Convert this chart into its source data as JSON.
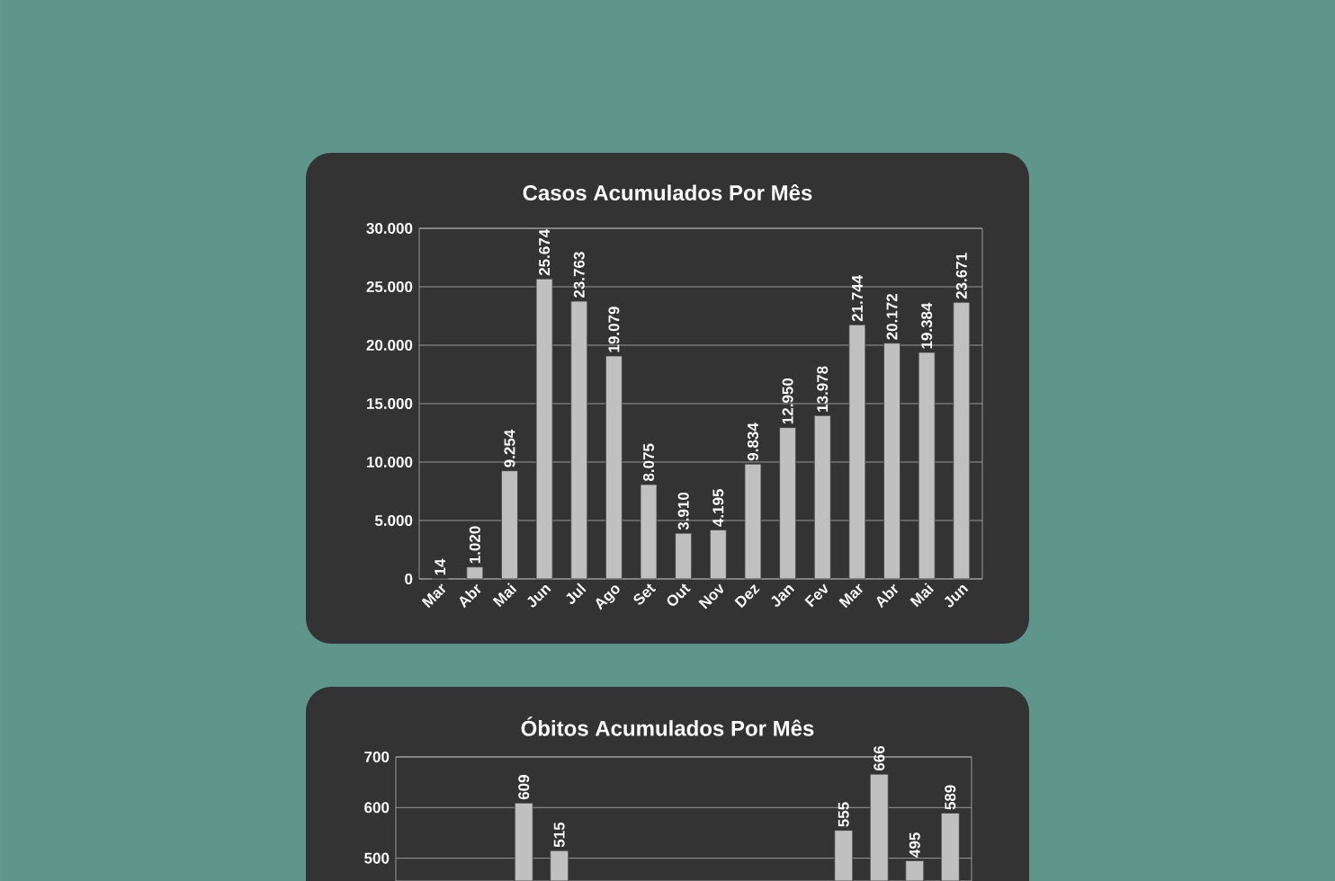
{
  "chart_data": [
    {
      "type": "bar",
      "title": "Casos Acumulados Por Mês",
      "categories": [
        "Mar",
        "Abr",
        "Mai",
        "Jun",
        "Jul",
        "Ago",
        "Set",
        "Out",
        "Nov",
        "Dez",
        "Jan",
        "Fev",
        "Mar",
        "Abr",
        "Mai",
        "Jun"
      ],
      "values": [
        14,
        1020,
        9254,
        25674,
        23763,
        19079,
        8075,
        3910,
        4195,
        9834,
        12950,
        13978,
        21744,
        20172,
        19384,
        23671
      ],
      "value_labels": [
        "14",
        "1.020",
        "9.254",
        "25.674",
        "23.763",
        "19.079",
        "8.075",
        "3.910",
        "4.195",
        "9.834",
        "12.950",
        "13.978",
        "21.744",
        "20.172",
        "19.384",
        "23.671"
      ],
      "color": "#c0c0c0",
      "ylim": [
        0,
        30000
      ],
      "yticks": [
        {
          "value": 0,
          "label": "0"
        },
        {
          "value": 5000,
          "label": "5.000"
        },
        {
          "value": 10000,
          "label": "10.000"
        },
        {
          "value": 15000,
          "label": "15.000"
        },
        {
          "value": 20000,
          "label": "20.000"
        },
        {
          "value": 25000,
          "label": "25.000"
        },
        {
          "value": 30000,
          "label": "30.000"
        }
      ],
      "grid": "y"
    },
    {
      "type": "bar",
      "title": "Óbitos Acumulados Por Mês",
      "categories": [
        null,
        null,
        null,
        null,
        null,
        null,
        null,
        null,
        null,
        null,
        null,
        null,
        null,
        null,
        null,
        null
      ],
      "values": [
        null,
        null,
        null,
        609,
        515,
        null,
        null,
        null,
        null,
        null,
        null,
        null,
        555,
        666,
        495,
        589
      ],
      "value_labels": [
        null,
        null,
        null,
        "609",
        "515",
        null,
        null,
        null,
        null,
        null,
        null,
        null,
        "555",
        "666",
        "495",
        "589"
      ],
      "color": "#c0c0c0",
      "ylim": [
        455,
        700
      ],
      "yticks": [
        500,
        600,
        700
      ],
      "grid": "y",
      "tick_labels": "y"
    }
  ]
}
